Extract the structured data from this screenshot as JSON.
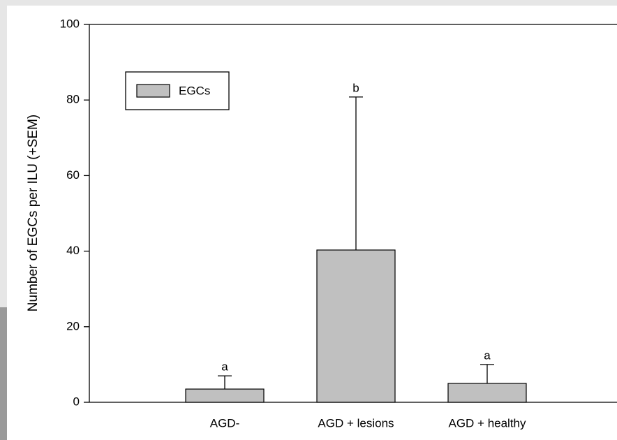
{
  "chart_data": {
    "type": "bar",
    "y_label": "Number of EGCs per ILU (+SEM)",
    "categories": [
      "AGD-",
      "AGD + lesions",
      "AGD + healthy"
    ],
    "series": [
      {
        "name": "EGCs",
        "color": "#c0c0c0",
        "values": [
          3.5,
          40.3,
          5
        ],
        "errors": [
          3.5,
          40.5,
          5
        ]
      }
    ],
    "letters": [
      "a",
      "b",
      "a"
    ],
    "ylim": [
      0,
      100
    ],
    "yticks": [
      0,
      20,
      40,
      60,
      80,
      100
    ],
    "legend": "upper left"
  }
}
